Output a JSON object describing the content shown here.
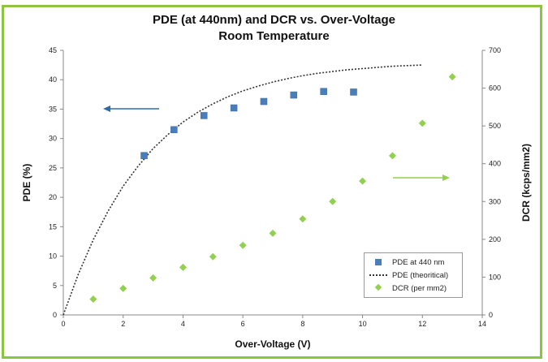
{
  "chart_data": {
    "type": "scatter",
    "title": "PDE (at 440nm) and DCR vs. Over-Voltage",
    "subtitle": "Room Temperature",
    "xlabel": "Over-Voltage (V)",
    "ylabel_left": "PDE (%)",
    "ylabel_right": "DCR (kcps/mm2)",
    "xlim": [
      0,
      14
    ],
    "ylim_left": [
      0,
      45
    ],
    "ylim_right": [
      0,
      700
    ],
    "x_ticks": [
      "0",
      "2",
      "4",
      "6",
      "8",
      "10",
      "12",
      "14"
    ],
    "y_left_ticks": [
      "0",
      "5",
      "10",
      "15",
      "20",
      "25",
      "30",
      "35",
      "40",
      "45"
    ],
    "y_right_ticks": [
      "0",
      "100",
      "200",
      "300",
      "400",
      "500",
      "600",
      "700"
    ],
    "series": [
      {
        "name": "PDE at 440 nm",
        "axis": "left",
        "marker": "square",
        "color": "#4a7ebb",
        "points": [
          [
            2.7,
            27.1
          ],
          [
            3.7,
            31.5
          ],
          [
            4.7,
            33.9
          ],
          [
            5.7,
            35.2
          ],
          [
            6.7,
            36.3
          ],
          [
            7.7,
            37.4
          ],
          [
            8.7,
            38.0
          ],
          [
            9.7,
            37.9
          ]
        ]
      },
      {
        "name": "PDE (theoritical)",
        "axis": "left",
        "marker": "dotted-line",
        "color": "#333333",
        "points": [
          [
            0,
            0
          ],
          [
            0.5,
            6.9
          ],
          [
            1,
            12.8
          ],
          [
            1.5,
            17.7
          ],
          [
            2,
            21.9
          ],
          [
            2.5,
            25.3
          ],
          [
            3,
            28.3
          ],
          [
            3.5,
            30.7
          ],
          [
            4,
            32.8
          ],
          [
            4.5,
            34.5
          ],
          [
            5,
            35.9
          ],
          [
            5.5,
            37.1
          ],
          [
            6,
            38.1
          ],
          [
            6.5,
            38.9
          ],
          [
            7,
            39.6
          ],
          [
            7.5,
            40.2
          ],
          [
            8,
            40.7
          ],
          [
            8.5,
            41.1
          ],
          [
            9,
            41.4
          ],
          [
            9.5,
            41.7
          ],
          [
            10,
            41.9
          ],
          [
            10.5,
            42.1
          ],
          [
            11,
            42.3
          ],
          [
            11.5,
            42.4
          ],
          [
            12,
            42.5
          ]
        ]
      },
      {
        "name": "DCR (per mm2)",
        "axis": "right",
        "marker": "diamond",
        "color": "#92d050",
        "points": [
          [
            1,
            42
          ],
          [
            2,
            70
          ],
          [
            3,
            98
          ],
          [
            4,
            126
          ],
          [
            5,
            154
          ],
          [
            6,
            184
          ],
          [
            7,
            216
          ],
          [
            8,
            254
          ],
          [
            9,
            300
          ],
          [
            10,
            354
          ],
          [
            11,
            421
          ],
          [
            12,
            507
          ],
          [
            13,
            630
          ]
        ]
      }
    ],
    "annotations": [
      {
        "type": "arrow",
        "direction": "left",
        "color": "#2e6da4",
        "meaning": "points to left axis (PDE)"
      },
      {
        "type": "arrow",
        "direction": "right",
        "color": "#92d050",
        "meaning": "points to right axis (DCR)"
      }
    ],
    "grid": false,
    "legend_position": "bottom-right"
  }
}
